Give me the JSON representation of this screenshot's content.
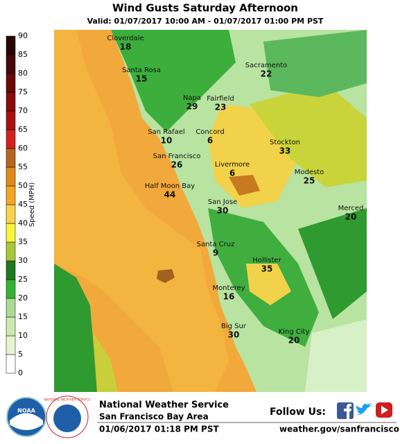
{
  "header": {
    "title": "Wind Gusts Saturday Afternoon",
    "valid": "Valid: 01/07/2017 10:00 AM - 01/07/2017 01:00 PM PST"
  },
  "legend": {
    "label": "Speed (MPH)",
    "ticks": [
      0,
      5,
      10,
      15,
      20,
      25,
      30,
      35,
      40,
      45,
      50,
      55,
      60,
      65,
      70,
      75,
      80,
      85,
      90
    ],
    "colors": [
      "#ffffff",
      "#e6f5d0",
      "#c8ebb0",
      "#a8dd90",
      "#33b233",
      "#1f7a1f",
      "#a8c83a",
      "#f5f53a",
      "#f7d24a",
      "#f5a623",
      "#e08a1a",
      "#b5651d",
      "#d42020",
      "#a81010",
      "#8b0a0a",
      "#6b0808",
      "#4a0808",
      "#2b0505"
    ]
  },
  "cities": [
    {
      "name": "Cloverdale",
      "value": "18"
    },
    {
      "name": "Santa Rosa",
      "value": "15"
    },
    {
      "name": "Napa",
      "value": "29"
    },
    {
      "name": "Fairfield",
      "value": "23"
    },
    {
      "name": "Sacramento",
      "value": "22"
    },
    {
      "name": "Concord",
      "value": "6"
    },
    {
      "name": "San Rafael",
      "value": "10"
    },
    {
      "name": "San Francisco",
      "value": "26"
    },
    {
      "name": "Livermore",
      "value": "6"
    },
    {
      "name": "Stockton",
      "value": "33"
    },
    {
      "name": "Modesto",
      "value": "25"
    },
    {
      "name": "Half Moon Bay",
      "value": "44"
    },
    {
      "name": "San Jose",
      "value": "30"
    },
    {
      "name": "Merced",
      "value": "20"
    },
    {
      "name": "Santa Cruz",
      "value": "9"
    },
    {
      "name": "Hollister",
      "value": "35"
    },
    {
      "name": "Monterey",
      "value": "16"
    },
    {
      "name": "Big Sur",
      "value": "30"
    },
    {
      "name": "King City",
      "value": "20"
    }
  ],
  "footer": {
    "office": "National Weather Service",
    "area": "San Francisco Bay Area",
    "issued": "01/06/2017 01:18 PM PST",
    "follow": "Follow Us:",
    "url": "weather.gov/sanfrancisco",
    "logos": [
      "NOAA",
      "NATIONAL WEATHER SERVICE"
    ]
  }
}
